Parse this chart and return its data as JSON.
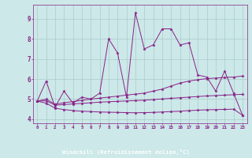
{
  "bg_color": "#cce8e8",
  "plot_bg_color": "#cce8e8",
  "line_color": "#882288",
  "grid_color": "#aacccc",
  "xlabel_bg": "#882288",
  "xlabel": "Windchill (Refroidissement éolien,°C)",
  "xlim": [
    -0.5,
    23.5
  ],
  "ylim": [
    3.8,
    9.7
  ],
  "yticks": [
    4,
    5,
    6,
    7,
    8,
    9
  ],
  "xticks": [
    0,
    1,
    2,
    3,
    4,
    5,
    6,
    7,
    8,
    9,
    10,
    11,
    12,
    13,
    14,
    15,
    16,
    17,
    18,
    19,
    20,
    21,
    22,
    23
  ],
  "series": [
    {
      "x": [
        0,
        1,
        2,
        3,
        4,
        5,
        6,
        7,
        8,
        9,
        10,
        11,
        12,
        13,
        14,
        15,
        16,
        17,
        18,
        19,
        20,
        21,
        22,
        23
      ],
      "y": [
        4.9,
        5.9,
        4.6,
        5.4,
        4.8,
        5.1,
        5.0,
        5.3,
        8.0,
        7.3,
        5.1,
        9.3,
        7.5,
        7.7,
        8.5,
        8.5,
        7.7,
        7.8,
        6.2,
        6.1,
        5.4,
        6.4,
        5.3,
        4.2
      ]
    },
    {
      "x": [
        0,
        1,
        2,
        3,
        4,
        5,
        6,
        7,
        8,
        9,
        10,
        11,
        12,
        13,
        14,
        15,
        16,
        17,
        18,
        19,
        20,
        21,
        22,
        23
      ],
      "y": [
        4.9,
        5.0,
        4.75,
        4.82,
        4.88,
        4.94,
        5.0,
        5.05,
        5.1,
        5.15,
        5.2,
        5.25,
        5.3,
        5.4,
        5.5,
        5.65,
        5.8,
        5.9,
        5.97,
        6.02,
        6.05,
        6.08,
        6.1,
        6.15
      ]
    },
    {
      "x": [
        0,
        1,
        2,
        3,
        4,
        5,
        6,
        7,
        8,
        9,
        10,
        11,
        12,
        13,
        14,
        15,
        16,
        17,
        18,
        19,
        20,
        21,
        22,
        23
      ],
      "y": [
        4.9,
        4.92,
        4.7,
        4.73,
        4.76,
        4.79,
        4.82,
        4.85,
        4.87,
        4.89,
        4.91,
        4.93,
        4.95,
        4.98,
        5.01,
        5.04,
        5.07,
        5.1,
        5.13,
        5.16,
        5.18,
        5.2,
        5.22,
        5.24
      ]
    },
    {
      "x": [
        0,
        1,
        2,
        3,
        4,
        5,
        6,
        7,
        8,
        9,
        10,
        11,
        12,
        13,
        14,
        15,
        16,
        17,
        18,
        19,
        20,
        21,
        22,
        23
      ],
      "y": [
        4.9,
        4.8,
        4.55,
        4.48,
        4.43,
        4.4,
        4.38,
        4.36,
        4.35,
        4.34,
        4.33,
        4.32,
        4.33,
        4.34,
        4.36,
        4.38,
        4.4,
        4.43,
        4.45,
        4.47,
        4.48,
        4.49,
        4.5,
        4.2
      ]
    }
  ]
}
